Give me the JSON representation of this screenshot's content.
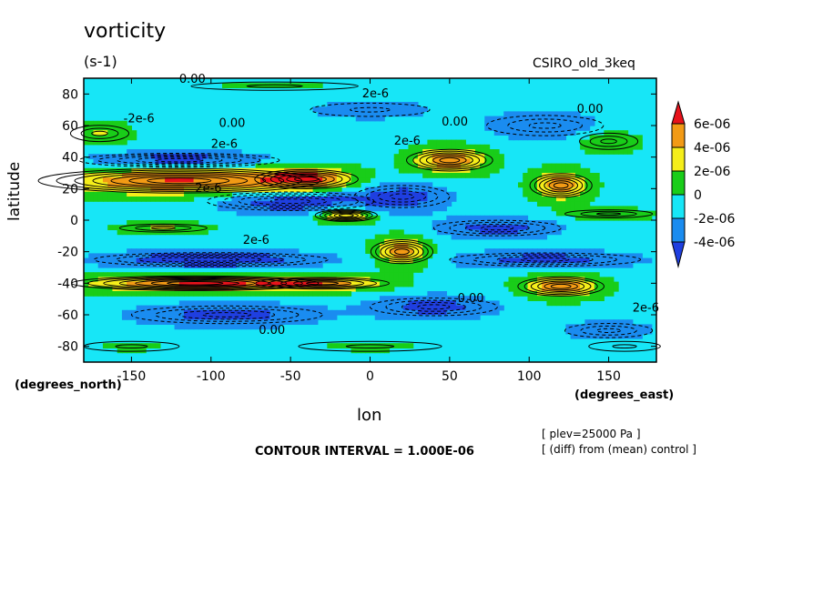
{
  "chart_data": {
    "type": "heatmap",
    "title": "vorticity",
    "units": "(s-1)",
    "model_label": "CSIRO_old_3keq",
    "xlabel": "lon",
    "ylabel": "latitude",
    "x_units": "(degrees_east)",
    "y_units": "(degrees_north)",
    "xlim": [
      -180,
      180
    ],
    "ylim": [
      -90,
      90
    ],
    "x_ticks": [
      -150,
      -100,
      -50,
      0,
      50,
      100,
      150
    ],
    "y_ticks": [
      80,
      60,
      40,
      20,
      0,
      -20,
      -40,
      -60,
      -80
    ],
    "x_tick_labels": [
      "-150",
      "-100",
      "-50",
      "0",
      "50",
      "100",
      "150"
    ],
    "y_tick_labels": [
      "80",
      "60",
      "40",
      "20",
      "0",
      "-20",
      "-40",
      "-60",
      "-80"
    ],
    "colorbar": {
      "labels": [
        "6e-06",
        "4e-06",
        "2e-06",
        "0",
        "-2e-06",
        "-4e-06"
      ],
      "levels": [
        6e-06,
        4e-06,
        2e-06,
        0,
        -2e-06,
        -4e-06
      ],
      "colors": [
        "#e8121b",
        "#f29a15",
        "#f5ee1a",
        "#19cd19",
        "#17e6f7",
        "#1a8cf0",
        "#1f3fe0"
      ],
      "extend": "both"
    },
    "contour_interval_text": "CONTOUR INTERVAL = 1.000E-06",
    "annotations": [
      "[ plev=25000 Pa ]",
      "[ (diff) from (mean) control ]"
    ],
    "contour_labels": [
      "0.00",
      "2e-6",
      "-2e-6",
      "0.00",
      "2e-6",
      "0.00",
      "0.00",
      "2e-6",
      "2e-6",
      "2e-6",
      "0.00",
      "2e-6",
      "0.00"
    ],
    "features": [
      {
        "lon": -120,
        "lat": 25,
        "lon_width": 80,
        "lat_width": 10,
        "value": 7e-06
      },
      {
        "lon": -40,
        "lat": 26,
        "lon_width": 30,
        "lat_width": 8,
        "value": 6e-06
      },
      {
        "lon": 50,
        "lat": 38,
        "lon_width": 25,
        "lat_width": 9,
        "value": 6e-06
      },
      {
        "lon": 120,
        "lat": 22,
        "lon_width": 18,
        "lat_width": 10,
        "value": 6e-06
      },
      {
        "lon": -15,
        "lat": 3,
        "lon_width": 18,
        "lat_width": 5,
        "value": 6e-06
      },
      {
        "lon": 20,
        "lat": -20,
        "lon_width": 18,
        "lat_width": 10,
        "value": 6e-06
      },
      {
        "lon": -110,
        "lat": -40,
        "lon_width": 70,
        "lat_width": 6,
        "value": 7e-06
      },
      {
        "lon": -30,
        "lat": -40,
        "lon_width": 40,
        "lat_width": 5,
        "value": 5e-06
      },
      {
        "lon": 120,
        "lat": -42,
        "lon_width": 25,
        "lat_width": 8,
        "value": 6e-06
      },
      {
        "lon": -120,
        "lat": 38,
        "lon_width": 60,
        "lat_width": 6,
        "value": -5e-06
      },
      {
        "lon": -50,
        "lat": 12,
        "lon_width": 50,
        "lat_width": 8,
        "value": -5e-06
      },
      {
        "lon": 20,
        "lat": 15,
        "lon_width": 30,
        "lat_width": 10,
        "value": -4e-06
      },
      {
        "lon": 80,
        "lat": -5,
        "lon_width": 40,
        "lat_width": 7,
        "value": -4e-06
      },
      {
        "lon": -100,
        "lat": -25,
        "lon_width": 70,
        "lat_width": 6,
        "value": -5e-06
      },
      {
        "lon": 110,
        "lat": -25,
        "lon_width": 60,
        "lat_width": 6,
        "value": -4e-06
      },
      {
        "lon": -90,
        "lat": -60,
        "lon_width": 60,
        "lat_width": 8,
        "value": -4e-06
      },
      {
        "lon": 40,
        "lat": -55,
        "lon_width": 40,
        "lat_width": 8,
        "value": -4e-06
      },
      {
        "lon": 150,
        "lat": -70,
        "lon_width": 30,
        "lat_width": 7,
        "value": -3e-06
      },
      {
        "lon": 110,
        "lat": 60,
        "lon_width": 40,
        "lat_width": 10,
        "value": -3e-06
      },
      {
        "lon": 0,
        "lat": 70,
        "lon_width": 50,
        "lat_width": 8,
        "value": -2e-06
      },
      {
        "lon": 150,
        "lat": 50,
        "lon_width": 20,
        "lat_width": 8,
        "value": 3e-06
      },
      {
        "lon": -170,
        "lat": 55,
        "lon_width": 20,
        "lat_width": 8,
        "value": 3e-06
      },
      {
        "lon": -130,
        "lat": -5,
        "lon_width": 30,
        "lat_width": 4,
        "value": 3e-06
      },
      {
        "lon": 150,
        "lat": 4,
        "lon_width": 30,
        "lat_width": 4,
        "value": 2.5e-06
      },
      {
        "lon": -150,
        "lat": -80,
        "lon_width": 40,
        "lat_width": 6,
        "value": 1e-06
      },
      {
        "lon": 160,
        "lat": -80,
        "lon_width": 30,
        "lat_width": 6,
        "value": 1e-06
      },
      {
        "lon": 0,
        "lat": -80,
        "lon_width": 60,
        "lat_width": 6,
        "value": 1e-06
      },
      {
        "lon": -60,
        "lat": 85,
        "lon_width": 70,
        "lat_width": 5,
        "value": 1e-06
      }
    ]
  }
}
